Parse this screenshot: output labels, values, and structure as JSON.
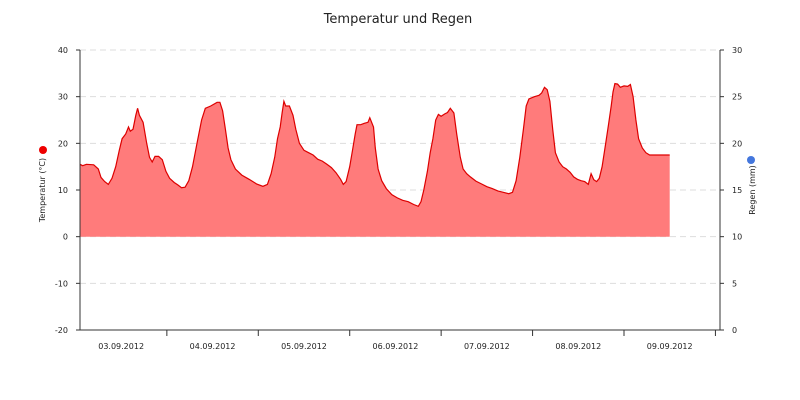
{
  "chart_data": {
    "type": "area",
    "title": "Temperatur und Regen",
    "y_left": {
      "label": "Temperatur (°C)",
      "range": [
        -20,
        40
      ],
      "ticks": [
        40,
        30,
        20,
        10,
        0,
        -10,
        -20
      ]
    },
    "y_right": {
      "label": "Regen (mm)",
      "range": [
        0,
        30
      ],
      "ticks": [
        30,
        25,
        20,
        15,
        10,
        5,
        0
      ]
    },
    "x_range_days": [
      2.55,
      9.55
    ],
    "x_ticks": [
      "03.09.2012",
      "04.09.2012",
      "05.09.2012",
      "06.09.2012",
      "07.09.2012",
      "08.09.2012",
      "09.09.2012"
    ],
    "grid": true,
    "legend_markers": [
      {
        "axis": "left",
        "color": "#ee0000"
      },
      {
        "axis": "right",
        "color": "#4477dd"
      }
    ],
    "series": [
      {
        "axis": "left",
        "color": "#ff7b7b",
        "stroke": "#dd0000",
        "points": [
          [
            2.55,
            15.5
          ],
          [
            2.58,
            15.2
          ],
          [
            2.62,
            15.5
          ],
          [
            2.7,
            15.4
          ],
          [
            2.75,
            14.5
          ],
          [
            2.78,
            12.7
          ],
          [
            2.82,
            11.8
          ],
          [
            2.86,
            11.2
          ],
          [
            2.9,
            12.5
          ],
          [
            2.94,
            15
          ],
          [
            2.98,
            18.5
          ],
          [
            3.01,
            21
          ],
          [
            3.05,
            22
          ],
          [
            3.08,
            23.5
          ],
          [
            3.1,
            22.6
          ],
          [
            3.13,
            23
          ],
          [
            3.16,
            26
          ],
          [
            3.18,
            27.5
          ],
          [
            3.2,
            26
          ],
          [
            3.24,
            24.5
          ],
          [
            3.28,
            20
          ],
          [
            3.31,
            17
          ],
          [
            3.34,
            16
          ],
          [
            3.37,
            17.2
          ],
          [
            3.41,
            17.2
          ],
          [
            3.45,
            16.5
          ],
          [
            3.49,
            14
          ],
          [
            3.53,
            12.5
          ],
          [
            3.58,
            11.6
          ],
          [
            3.62,
            11.1
          ],
          [
            3.66,
            10.5
          ],
          [
            3.7,
            10.6
          ],
          [
            3.74,
            12
          ],
          [
            3.78,
            15
          ],
          [
            3.83,
            20
          ],
          [
            3.88,
            25
          ],
          [
            3.92,
            27.5
          ],
          [
            3.98,
            28
          ],
          [
            4.05,
            28.8
          ],
          [
            4.08,
            28.8
          ],
          [
            4.11,
            27
          ],
          [
            4.14,
            23
          ],
          [
            4.17,
            19
          ],
          [
            4.2,
            16.5
          ],
          [
            4.25,
            14.5
          ],
          [
            4.32,
            13.2
          ],
          [
            4.4,
            12.3
          ],
          [
            4.48,
            11.3
          ],
          [
            4.55,
            10.8
          ],
          [
            4.6,
            11.2
          ],
          [
            4.64,
            13.5
          ],
          [
            4.68,
            17
          ],
          [
            4.71,
            21
          ],
          [
            4.74,
            23.5
          ],
          [
            4.76,
            26.5
          ],
          [
            4.78,
            29
          ],
          [
            4.8,
            28
          ],
          [
            4.84,
            28
          ],
          [
            4.88,
            26
          ],
          [
            4.91,
            23
          ],
          [
            4.95,
            20
          ],
          [
            5.0,
            18.5
          ],
          [
            5.05,
            18
          ],
          [
            5.1,
            17.5
          ],
          [
            5.15,
            16.6
          ],
          [
            5.2,
            16.2
          ],
          [
            5.25,
            15.5
          ],
          [
            5.3,
            14.8
          ],
          [
            5.35,
            13.7
          ],
          [
            5.4,
            12.3
          ],
          [
            5.43,
            11.2
          ],
          [
            5.46,
            11.8
          ],
          [
            5.5,
            15
          ],
          [
            5.53,
            18.5
          ],
          [
            5.56,
            22
          ],
          [
            5.58,
            24
          ],
          [
            5.62,
            24
          ],
          [
            5.66,
            24.3
          ],
          [
            5.7,
            24.5
          ],
          [
            5.72,
            25.5
          ],
          [
            5.76,
            23.5
          ],
          [
            5.78,
            19
          ],
          [
            5.81,
            14.5
          ],
          [
            5.85,
            12
          ],
          [
            5.9,
            10.3
          ],
          [
            5.96,
            9
          ],
          [
            6.02,
            8.3
          ],
          [
            6.08,
            7.8
          ],
          [
            6.14,
            7.5
          ],
          [
            6.2,
            6.9
          ],
          [
            6.25,
            6.5
          ],
          [
            6.28,
            7.5
          ],
          [
            6.31,
            10
          ],
          [
            6.35,
            14
          ],
          [
            6.38,
            18
          ],
          [
            6.41,
            21
          ],
          [
            6.44,
            25
          ],
          [
            6.47,
            26.2
          ],
          [
            6.5,
            25.8
          ],
          [
            6.54,
            26.3
          ],
          [
            6.57,
            26.6
          ],
          [
            6.6,
            27.5
          ],
          [
            6.64,
            26.5
          ],
          [
            6.67,
            22
          ],
          [
            6.71,
            17
          ],
          [
            6.74,
            14.5
          ],
          [
            6.78,
            13.5
          ],
          [
            6.82,
            12.8
          ],
          [
            6.88,
            11.9
          ],
          [
            6.94,
            11.3
          ],
          [
            7.0,
            10.7
          ],
          [
            7.06,
            10.3
          ],
          [
            7.12,
            9.8
          ],
          [
            7.18,
            9.5
          ],
          [
            7.24,
            9.2
          ],
          [
            7.28,
            9.5
          ],
          [
            7.32,
            12
          ],
          [
            7.36,
            17
          ],
          [
            7.4,
            23
          ],
          [
            7.43,
            28
          ],
          [
            7.46,
            29.5
          ],
          [
            7.52,
            30
          ],
          [
            7.57,
            30.3
          ],
          [
            7.6,
            30.8
          ],
          [
            7.63,
            32
          ],
          [
            7.66,
            31.5
          ],
          [
            7.69,
            29
          ],
          [
            7.72,
            23
          ],
          [
            7.75,
            18
          ],
          [
            7.79,
            16
          ],
          [
            7.83,
            15
          ],
          [
            7.87,
            14.5
          ],
          [
            7.91,
            13.8
          ],
          [
            7.95,
            12.8
          ],
          [
            7.99,
            12.3
          ],
          [
            8.03,
            12
          ],
          [
            8.07,
            11.8
          ],
          [
            8.11,
            11.2
          ],
          [
            8.14,
            13.5
          ],
          [
            8.17,
            12.2
          ],
          [
            8.2,
            11.8
          ],
          [
            8.23,
            12.5
          ],
          [
            8.26,
            15
          ],
          [
            8.3,
            20
          ],
          [
            8.33,
            24
          ],
          [
            8.36,
            28
          ],
          [
            8.38,
            31
          ],
          [
            8.4,
            32.8
          ],
          [
            8.43,
            32.7
          ],
          [
            8.46,
            32
          ],
          [
            8.5,
            32.3
          ],
          [
            8.54,
            32.2
          ],
          [
            8.57,
            32.6
          ],
          [
            8.6,
            30
          ],
          [
            8.63,
            25
          ],
          [
            8.66,
            21
          ],
          [
            8.7,
            19
          ],
          [
            8.74,
            18
          ],
          [
            8.78,
            17.5
          ],
          [
            9.0,
            17.5
          ]
        ]
      }
    ]
  }
}
